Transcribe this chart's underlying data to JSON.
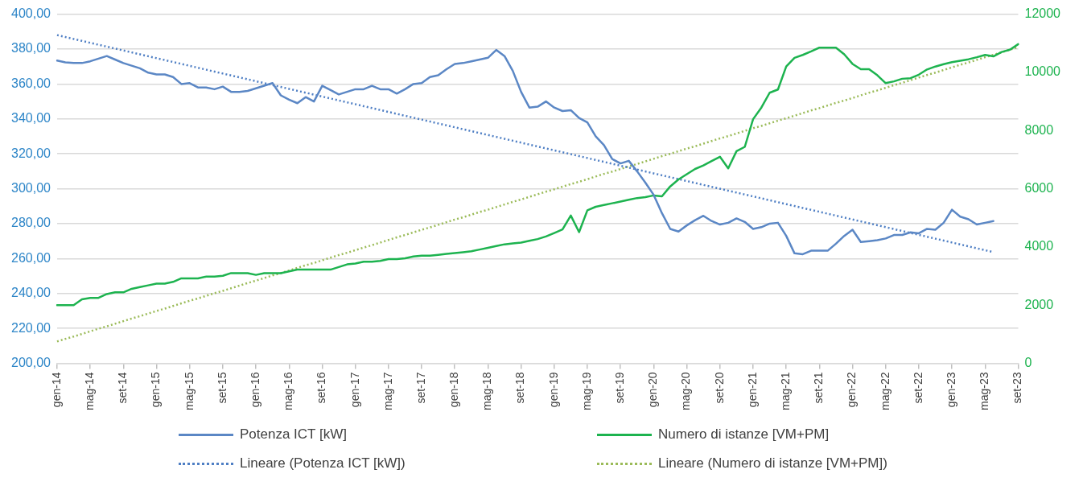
{
  "chart_data": {
    "type": "line",
    "categories": [
      "gen-14",
      null,
      null,
      null,
      "mag-14",
      null,
      null,
      null,
      "set-14",
      null,
      null,
      null,
      "gen-15",
      null,
      null,
      null,
      "mag-15",
      null,
      null,
      null,
      "set-15",
      null,
      null,
      null,
      "gen-16",
      null,
      null,
      null,
      "mag-16",
      null,
      null,
      null,
      "set-16",
      null,
      null,
      null,
      "gen-17",
      null,
      null,
      null,
      "mag-17",
      null,
      null,
      null,
      "set-17",
      null,
      null,
      null,
      "gen-18",
      null,
      null,
      null,
      "mag-18",
      null,
      null,
      null,
      "set-18",
      null,
      null,
      null,
      "gen-19",
      null,
      null,
      null,
      "mag-19",
      null,
      null,
      null,
      "set-19",
      null,
      null,
      null,
      "gen-20",
      null,
      null,
      null,
      "mag-20",
      null,
      null,
      null,
      "set-20",
      null,
      null,
      null,
      "gen-21",
      null,
      null,
      null,
      "mag-21",
      null,
      null,
      null,
      "set-21",
      null,
      null,
      null,
      "gen-22",
      null,
      null,
      null,
      "mag-22",
      null,
      null,
      null,
      "set-22",
      null,
      null,
      null,
      "gen-23",
      null,
      null,
      null,
      "mag-23",
      null,
      null,
      null,
      "set-23"
    ],
    "series": [
      {
        "name": "Potenza ICT [kW]",
        "color": "#5b87c5",
        "line_style": "solid",
        "values": [
          373.4,
          372.4,
          372,
          372,
          373,
          374.5,
          376,
          374,
          372,
          370.5,
          369,
          366.5,
          365.5,
          365.5,
          364,
          360,
          360.5,
          358,
          358,
          357,
          358.5,
          355.5,
          355.5,
          356,
          357.5,
          359,
          360.5,
          353.5,
          351,
          349,
          352.5,
          350,
          359,
          356.5,
          354,
          355.5,
          357,
          357,
          359,
          357,
          357,
          354.5,
          357,
          360,
          360.5,
          364,
          365,
          368.5,
          371.5,
          372,
          373,
          374,
          375,
          379.5,
          376,
          367.5,
          355.5,
          346.5,
          347,
          350,
          346.5,
          344.5,
          345,
          340.5,
          338,
          330,
          325,
          317,
          314.5,
          316,
          310,
          303.5,
          296.5,
          286,
          277,
          275.5,
          279,
          282,
          284.5,
          281.5,
          279.5,
          280.5,
          283,
          281,
          277,
          278,
          280,
          280.5,
          273,
          263,
          262.5,
          264.5,
          264.5,
          264.5,
          268.5,
          273,
          276.5,
          269.5,
          270,
          270.5,
          271.5,
          273.5,
          273.5,
          275,
          274.5,
          277,
          276.5,
          280.5,
          288,
          284,
          282.5,
          279.5,
          280.5,
          281.5,
          null,
          null,
          null
        ]
      },
      {
        "name": "Numero di istanze [VM+PM]",
        "color": "#1db34f",
        "axis": "y2",
        "line_style": "solid",
        "values": [
          2000,
          2000,
          2000,
          2200,
          2250,
          2250,
          2380,
          2440,
          2440,
          2560,
          2620,
          2680,
          2740,
          2740,
          2800,
          2920,
          2920,
          2920,
          2980,
          2980,
          3010,
          3100,
          3100,
          3100,
          3040,
          3100,
          3100,
          3100,
          3160,
          3220,
          3220,
          3220,
          3220,
          3220,
          3310,
          3400,
          3430,
          3490,
          3490,
          3520,
          3580,
          3580,
          3610,
          3670,
          3700,
          3700,
          3730,
          3760,
          3790,
          3820,
          3850,
          3910,
          3970,
          4030,
          4090,
          4120,
          4150,
          4210,
          4270,
          4360,
          4480,
          4600,
          5080,
          4510,
          5260,
          5380,
          5440,
          5500,
          5560,
          5620,
          5680,
          5710,
          5770,
          5740,
          6080,
          6320,
          6500,
          6680,
          6800,
          6950,
          7100,
          6700,
          7290,
          7440,
          8390,
          8790,
          9300,
          9410,
          10200,
          10500,
          10600,
          10720,
          10850,
          10850,
          10850,
          10620,
          10290,
          10110,
          10110,
          9900,
          9630,
          9690,
          9780,
          9800,
          9920,
          10100,
          10200,
          10280,
          10350,
          10400,
          10450,
          10520,
          10600,
          10550,
          10700,
          10780,
          10970
        ]
      },
      {
        "name": "Lineare (Potenza ICT [kW])",
        "color": "#4f7fc4",
        "line_style": "dotted",
        "values": [
          388,
          386.9,
          385.8,
          384.7,
          383.6,
          382.5,
          381.4,
          380.3,
          379.2,
          378.1,
          377,
          375.9,
          374.8,
          373.7,
          372.6,
          371.5,
          370.4,
          369.3,
          368.2,
          367.1,
          366,
          364.9,
          363.8,
          362.7,
          361.6,
          360.5,
          359.4,
          358.3,
          357.2,
          356.1,
          355,
          353.9,
          352.8,
          351.7,
          350.6,
          349.5,
          348.4,
          347.3,
          346.2,
          345.1,
          344,
          342.9,
          341.8,
          340.7,
          339.6,
          338.5,
          337.4,
          336.3,
          335.2,
          334.1,
          333,
          331.9,
          330.8,
          329.7,
          328.6,
          327.5,
          326.4,
          325.3,
          324.2,
          323.1,
          322,
          320.9,
          319.8,
          318.7,
          317.6,
          316.5,
          315.4,
          314.3,
          313.2,
          312.1,
          311,
          309.9,
          308.8,
          307.7,
          306.6,
          305.5,
          304.4,
          303.3,
          302.2,
          301.1,
          300,
          298.9,
          297.8,
          296.7,
          295.6,
          294.5,
          293.4,
          292.3,
          291.2,
          290.1,
          289,
          287.9,
          286.8,
          285.7,
          284.6,
          283.5,
          282.4,
          281.3,
          280.2,
          279.1,
          278,
          276.9,
          275.8,
          274.7,
          273.6,
          272.5,
          271.4,
          270.3,
          269.2,
          268.1,
          267,
          265.9,
          264.8,
          263.7,
          null,
          null,
          null
        ]
      },
      {
        "name": "Lineare (Numero di istanze [VM+PM])",
        "color": "#9bbb59",
        "axis": "y2",
        "line_style": "dotted",
        "values": [
          750,
          840,
          920,
          1010,
          1100,
          1190,
          1270,
          1360,
          1450,
          1540,
          1620,
          1710,
          1800,
          1880,
          1970,
          2060,
          2150,
          2230,
          2320,
          2410,
          2490,
          2580,
          2670,
          2760,
          2840,
          2930,
          3020,
          3100,
          3190,
          3280,
          3370,
          3450,
          3540,
          3630,
          3720,
          3800,
          3890,
          3980,
          4060,
          4150,
          4240,
          4330,
          4410,
          4500,
          4590,
          4670,
          4760,
          4850,
          4940,
          5020,
          5110,
          5200,
          5280,
          5370,
          5460,
          5550,
          5630,
          5720,
          5810,
          5900,
          5980,
          6070,
          6160,
          6240,
          6330,
          6420,
          6510,
          6590,
          6680,
          6770,
          6850,
          6940,
          7030,
          7120,
          7200,
          7290,
          7380,
          7460,
          7550,
          7640,
          7730,
          7810,
          7900,
          7990,
          8080,
          8160,
          8250,
          8340,
          8420,
          8510,
          8600,
          8690,
          8770,
          8860,
          8950,
          9030,
          9120,
          9210,
          9300,
          9380,
          9470,
          9560,
          9640,
          9730,
          9820,
          9910,
          9990,
          10080,
          10170,
          10260,
          10340,
          10430,
          10520,
          10600,
          10690,
          10780,
          10870
        ]
      }
    ],
    "ylim": [
      200,
      400
    ],
    "yticks": [
      {
        "value": 200,
        "label": "200,00"
      },
      {
        "value": 220,
        "label": "220,00"
      },
      {
        "value": 240,
        "label": "240,00"
      },
      {
        "value": 260,
        "label": "260,00"
      },
      {
        "value": 280,
        "label": "280,00"
      },
      {
        "value": 300,
        "label": "300,00"
      },
      {
        "value": 320,
        "label": "320,00"
      },
      {
        "value": 340,
        "label": "340,00"
      },
      {
        "value": 360,
        "label": "360,00"
      },
      {
        "value": 380,
        "label": "380,00"
      },
      {
        "value": 400,
        "label": "400,00"
      }
    ],
    "y2lim": [
      0,
      12000
    ],
    "y2ticks": [
      0,
      2000,
      4000,
      6000,
      8000,
      10000,
      12000
    ],
    "grid": "y",
    "legend": "bottom"
  }
}
